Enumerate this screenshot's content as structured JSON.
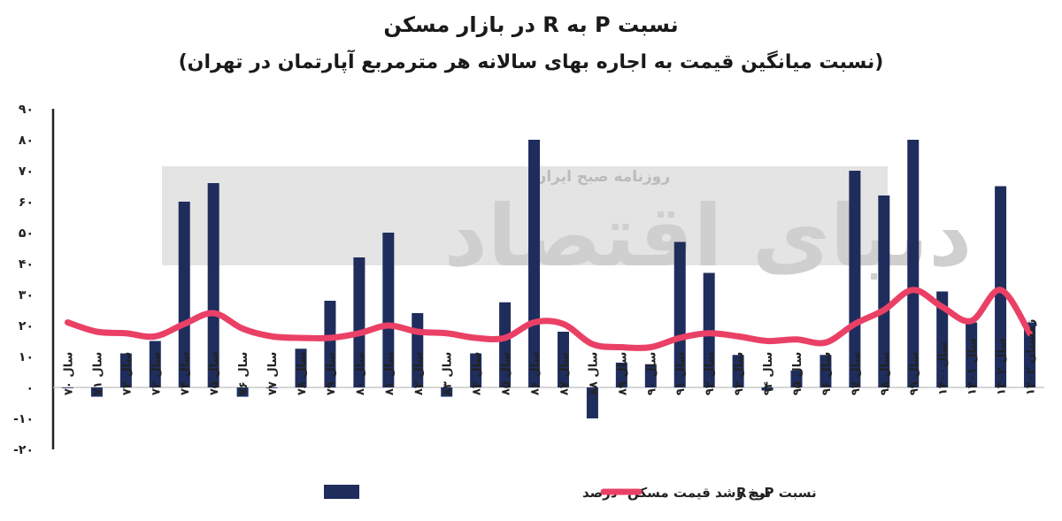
{
  "title": "نسبت P به R در بازار مسکن",
  "subtitle": "(نسبت میانگین قیمت به اجاره بهای سالانه هر مترمربع آپارتمان در تهران)",
  "watermark": {
    "main": "دنیای اقتصاد",
    "sub": "روزنامه صبح ایران"
  },
  "chart_data": {
    "type": "bar",
    "categories": [
      "سال ۷۰",
      "سال ۷۱",
      "سال ۷۲",
      "سال ۷۳",
      "سال ۷۴",
      "سال ۷۵",
      "سال ۷۶",
      "سال ۷۷",
      "سال ۷۸",
      "سال ۷۹",
      "سال ۸۰",
      "سال ۸۱",
      "سال ۸۲",
      "سال ۸۳",
      "سال ۸۴",
      "سال ۸۵",
      "سال ۸۶",
      "سال ۸۷",
      "سال ۸۸",
      "سال ۸۹",
      "سال ۹۰",
      "سال ۹۱",
      "سال ۹۲",
      "سال ۹۳",
      "سال ۹۴",
      "سال ۹۵",
      "سال ۹۶",
      "سال ۹۷",
      "سال ۹۸",
      "سال ۹۹",
      "سال۱۴۰۰",
      "سال ۱۴۰۱",
      "سال ۱۴۰۲",
      "زمستان ۱۴۰۲"
    ],
    "series": [
      {
        "name": "نرخ رشد قیمت مسکن- درصد",
        "kind": "bar",
        "color": "#1f2d5c",
        "values": [
          0,
          -3,
          11,
          15,
          60,
          66,
          -3,
          0,
          12.5,
          28,
          42,
          50,
          24,
          -3,
          11,
          27.5,
          80,
          18,
          -10,
          8,
          7.5,
          47,
          37,
          10.5,
          -1,
          5.5,
          10.5,
          70,
          62,
          80,
          31,
          21,
          65,
          21
        ]
      },
      {
        "name": "نسبت Pبه R",
        "kind": "line",
        "color": "#ea4066",
        "values": [
          21,
          18,
          17.5,
          16.5,
          20.5,
          24,
          19,
          16.5,
          16,
          16,
          17.5,
          20,
          18,
          17.5,
          16,
          16,
          21,
          20.5,
          14,
          13,
          13,
          16,
          17.5,
          16.5,
          15,
          15.5,
          14.5,
          20.5,
          25,
          31.5,
          26,
          21.5,
          31.5,
          17.5
        ]
      }
    ],
    "y_tick_labels": [
      "۹۰",
      "۸۰",
      "۷۰",
      "۶۰",
      "۵۰",
      "۴۰",
      "۳۰",
      "۲۰",
      "۱۰",
      "۰",
      "-۱۰",
      "-۲۰"
    ],
    "ylim": [
      -20,
      90
    ],
    "legend_placement": "bottom-center",
    "grid": false
  }
}
